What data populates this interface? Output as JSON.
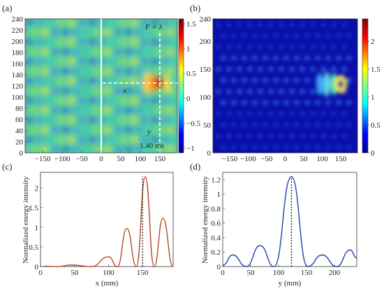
{
  "figure": {
    "panels": [
      {
        "id": "a",
        "label": "(a)"
      },
      {
        "id": "b",
        "label": "(b)"
      },
      {
        "id": "c",
        "label": "(c)"
      },
      {
        "id": "d",
        "label": "(d)"
      }
    ]
  },
  "chart_data": [
    {
      "panel": "(a)",
      "type": "heatmap",
      "title": "",
      "xlim": [
        -195,
        195
      ],
      "ylim": [
        0,
        240
      ],
      "xticks": [
        "-150",
        "-100",
        "-50",
        "0",
        "50",
        "100",
        "150"
      ],
      "yticks": [
        "0",
        "20",
        "40",
        "60",
        "80",
        "100",
        "120",
        "140",
        "160",
        "180",
        "200",
        "220",
        "240"
      ],
      "colorbar": {
        "min": -1.1,
        "max": 1.6,
        "ticks": [
          "-1",
          "-0.5",
          "0",
          "0.5",
          "1",
          "1.5"
        ]
      },
      "annotations": {
        "focus": "F = λ",
        "time": "1.40 ms",
        "x_line": "x",
        "y_line": "y"
      },
      "focus_point": {
        "x": 150,
        "y": 125
      },
      "dividing_line_x": 0
    },
    {
      "panel": "(b)",
      "type": "heatmap",
      "title": "",
      "xlim": [
        -195,
        195
      ],
      "ylim": [
        0,
        240
      ],
      "xticks": [
        "-150",
        "-100",
        "-50",
        "0",
        "50",
        "100",
        "150"
      ],
      "yticks": [
        "0",
        "50",
        "100",
        "150",
        "200",
        "240"
      ],
      "colorbar": {
        "min": 0,
        "max": 2.4,
        "ticks": [
          "0",
          "0.5",
          "1",
          "1.5",
          "2"
        ]
      },
      "focus_point": {
        "x": 150,
        "y": 123
      }
    },
    {
      "panel": "(c)",
      "type": "line",
      "xlabel": "x (mm)",
      "ylabel": "Normalized energy intensity",
      "xlim": [
        0,
        195
      ],
      "ylim": [
        0,
        2.4
      ],
      "xticks": [
        "0",
        "50",
        "100",
        "150"
      ],
      "yticks": [
        "0",
        "0.5",
        "1",
        "1.5",
        "2"
      ],
      "series": [
        {
          "color": "#b5492a",
          "peaks": [
            {
              "x": 5,
              "y": 0.01
            },
            {
              "x": 45,
              "y": 0.04
            },
            {
              "x": 100,
              "y": 0.25
            },
            {
              "x": 127,
              "y": 0.97
            },
            {
              "x": 154,
              "y": 2.29
            },
            {
              "x": 180,
              "y": 1.23
            }
          ],
          "valleys": [
            {
              "x": 25,
              "y": 0.0
            },
            {
              "x": 75,
              "y": 0.0
            },
            {
              "x": 113,
              "y": 0.0
            },
            {
              "x": 141,
              "y": 0.0
            },
            {
              "x": 167,
              "y": 0.0
            },
            {
              "x": 195,
              "y": 0.0
            }
          ]
        }
      ],
      "reference_line": {
        "x": 150,
        "style": "dotted"
      }
    },
    {
      "panel": "(d)",
      "type": "line",
      "xlabel": "y (mm)",
      "ylabel": "Normalized energy intensity",
      "xlim": [
        0,
        240
      ],
      "ylim": [
        0,
        1.3
      ],
      "xticks": [
        "0",
        "50",
        "100",
        "150",
        "200"
      ],
      "yticks": [
        "0",
        "0.2",
        "0.4",
        "0.6",
        "0.8",
        "1",
        "1.2"
      ],
      "series": [
        {
          "color": "#1f3fae",
          "peaks": [
            {
              "x": 18,
              "y": 0.16
            },
            {
              "x": 67,
              "y": 0.29
            },
            {
              "x": 123,
              "y": 1.24
            },
            {
              "x": 178,
              "y": 0.16
            },
            {
              "x": 228,
              "y": 0.23
            }
          ],
          "valleys": [
            {
              "x": 0,
              "y": 0.02
            },
            {
              "x": 42,
              "y": 0.0
            },
            {
              "x": 92,
              "y": 0.0
            },
            {
              "x": 152,
              "y": 0.0
            },
            {
              "x": 204,
              "y": 0.0
            },
            {
              "x": 240,
              "y": 0.12
            }
          ]
        }
      ],
      "reference_line": {
        "x": 123,
        "style": "dotted"
      }
    }
  ]
}
